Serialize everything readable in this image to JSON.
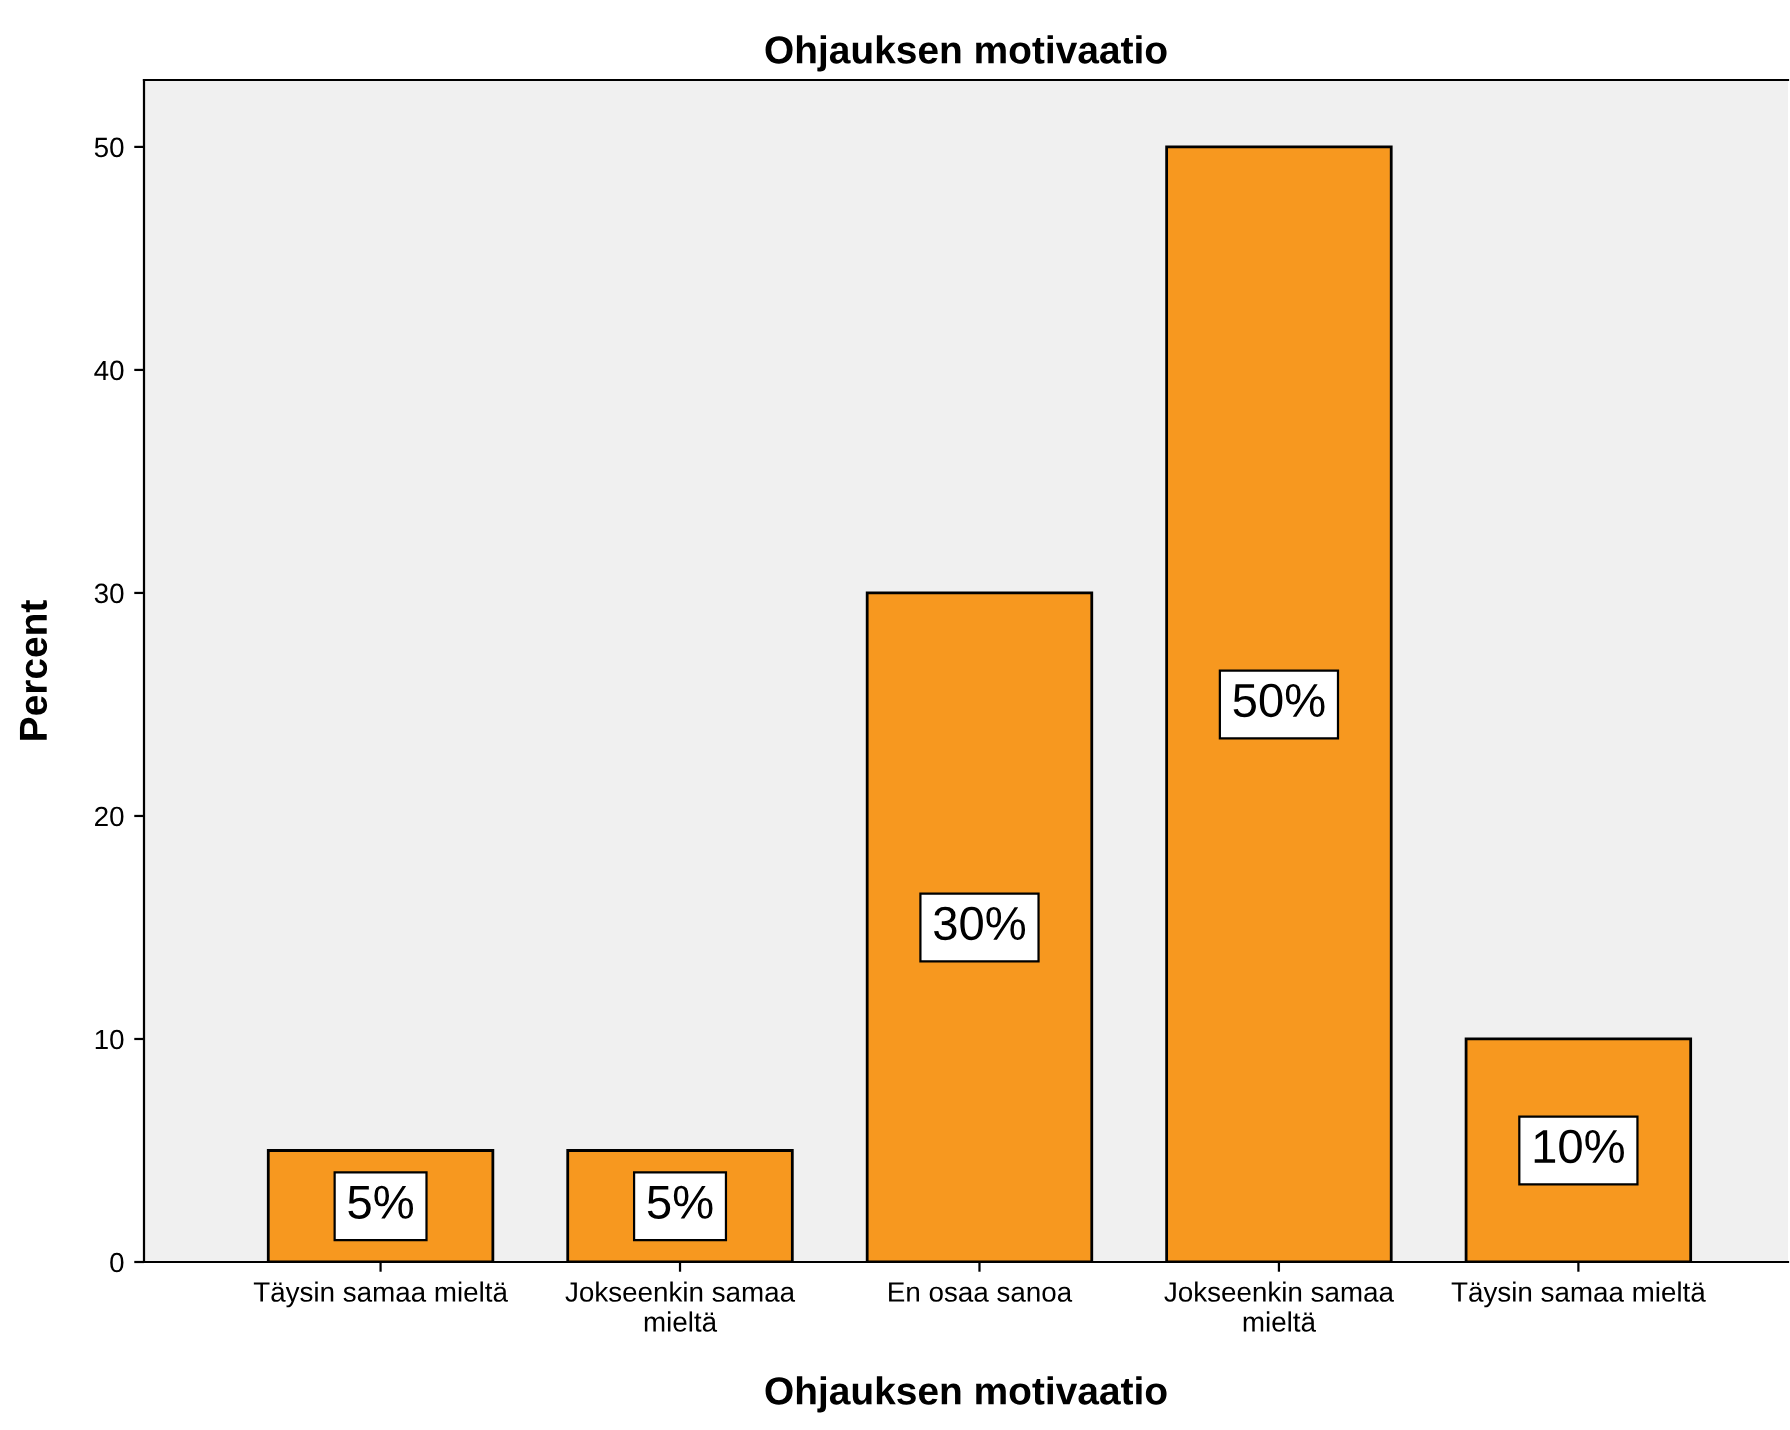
{
  "chart_data": {
    "type": "bar",
    "title": "Ohjauksen motivaatio",
    "xlabel": "Ohjauksen motivaatio",
    "ylabel": "Percent",
    "categories": [
      "Täysin samaa mieltä",
      "Jokseenkin samaa\nmieltä",
      "En osaa sanoa",
      "Jokseenkin samaa\nmieltä",
      "Täysin samaa mieltä"
    ],
    "values": [
      5,
      5,
      30,
      50,
      10
    ],
    "value_labels": [
      "5%",
      "5%",
      "30%",
      "50%",
      "10%"
    ],
    "color": "#f7981f",
    "ylim": [
      0,
      53
    ],
    "yticks": [
      0,
      10,
      20,
      30,
      40,
      50
    ],
    "grid": false,
    "legend": false
  }
}
